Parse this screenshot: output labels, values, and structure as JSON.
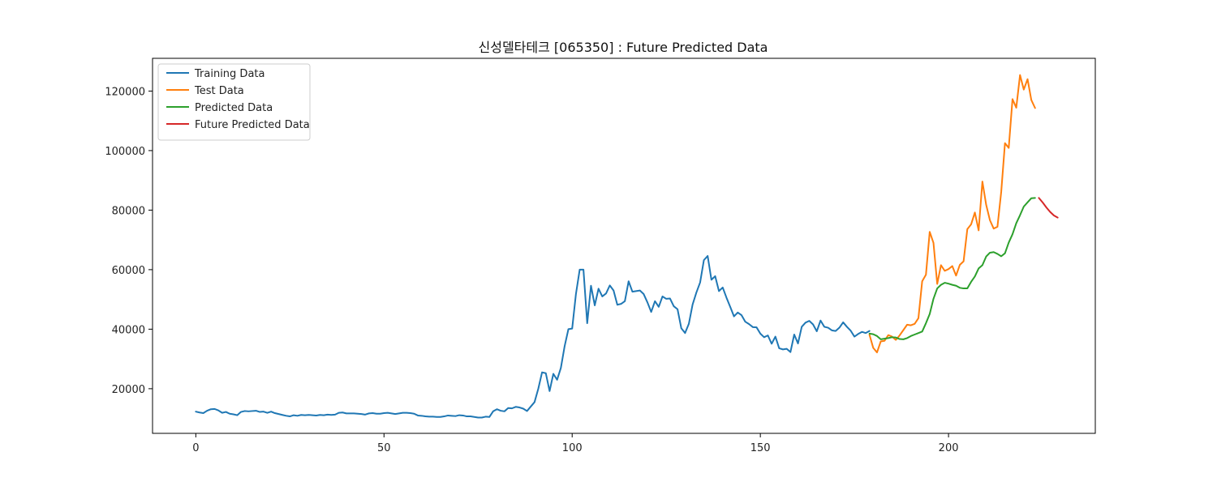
{
  "chart_data": {
    "type": "line",
    "title": "신성델타테크 [065350] : Future Predicted Data",
    "xlabel": "",
    "ylabel": "",
    "xlim": [
      -11.5,
      239
    ],
    "ylim": [
      5000,
      131000
    ],
    "xticks": [
      0,
      50,
      100,
      150,
      200
    ],
    "yticks": [
      20000,
      40000,
      60000,
      80000,
      100000,
      120000
    ],
    "grid": false,
    "legend_position": "top-left",
    "series": [
      {
        "name": "Training Data",
        "color": "#1f77b4",
        "x_start": 0,
        "values": [
          12300,
          12000,
          11800,
          12600,
          13100,
          13200,
          12700,
          11900,
          12200,
          11600,
          11400,
          11100,
          12200,
          12500,
          12400,
          12500,
          12600,
          12200,
          12300,
          11900,
          12300,
          11800,
          11500,
          11200,
          10900,
          10700,
          11100,
          10900,
          11200,
          11100,
          11200,
          11100,
          11000,
          11200,
          11100,
          11300,
          11200,
          11300,
          11900,
          12000,
          11700,
          11700,
          11700,
          11600,
          11500,
          11300,
          11700,
          11800,
          11600,
          11600,
          11800,
          11900,
          11700,
          11500,
          11700,
          11900,
          11900,
          11800,
          11600,
          11000,
          10900,
          10700,
          10600,
          10600,
          10500,
          10500,
          10700,
          11000,
          10900,
          10800,
          11100,
          11000,
          10700,
          10700,
          10500,
          10300,
          10300,
          10600,
          10500,
          12400,
          13100,
          12600,
          12400,
          13500,
          13400,
          13900,
          13700,
          13300,
          12500,
          14000,
          15500,
          20000,
          25500,
          25200,
          19200,
          25000,
          23000,
          27000,
          34300,
          40000,
          40200,
          51800,
          60000,
          60000,
          42000,
          54600,
          48000,
          53600,
          51000,
          52000,
          54700,
          53000,
          48200,
          48500,
          49400,
          56100,
          52600,
          52800,
          53000,
          51800,
          49000,
          45800,
          49400,
          47500,
          51000,
          50200,
          50300,
          47700,
          46700,
          40300,
          38700,
          41800,
          48300,
          52300,
          55700,
          63200,
          64600,
          56600,
          57800,
          52800,
          54000,
          50600,
          47500,
          44300,
          45600,
          44700,
          42500,
          41700,
          40700,
          40600,
          38500,
          37300,
          37900,
          35100,
          37500,
          33600,
          33200,
          33400,
          32300,
          38200,
          35200,
          40800,
          42200,
          42800,
          41600,
          39300,
          42900,
          40800,
          40500,
          39600,
          39400,
          40500,
          42300,
          40800,
          39500,
          37500,
          38400,
          39100,
          38700,
          39400
        ]
      },
      {
        "name": "Test Data",
        "color": "#ff7f0e",
        "x_start": 179,
        "values": [
          38100,
          33700,
          32200,
          35900,
          36100,
          38000,
          37500,
          36400,
          37900,
          39700,
          41500,
          41300,
          41800,
          43700,
          56100,
          58300,
          72700,
          69000,
          55200,
          61500,
          59600,
          60200,
          61200,
          58000,
          61600,
          62800,
          73600,
          75200,
          79200,
          73200,
          89600,
          81800,
          76600,
          73800,
          74400,
          86100,
          102500,
          100900,
          117300,
          114400,
          125400,
          120500,
          124000,
          117000,
          114300
        ]
      },
      {
        "name": "Predicted Data",
        "color": "#2ca02c",
        "x_start": 179,
        "values": [
          38500,
          38300,
          37700,
          36600,
          36800,
          37000,
          37300,
          37200,
          36700,
          36600,
          37000,
          37700,
          38200,
          38700,
          39200,
          42000,
          45100,
          50200,
          53700,
          54900,
          55600,
          55300,
          54900,
          54600,
          53900,
          53700,
          53700,
          55900,
          57700,
          60400,
          61500,
          64400,
          65700,
          65900,
          65300,
          64500,
          65500,
          69100,
          71900,
          75600,
          78300,
          81200,
          82600,
          84000,
          84100
        ]
      },
      {
        "name": "Future Predicted Data",
        "color": "#d62728",
        "x_start": 224,
        "values": [
          84100,
          82600,
          80900,
          79400,
          78200,
          77500
        ]
      }
    ]
  }
}
